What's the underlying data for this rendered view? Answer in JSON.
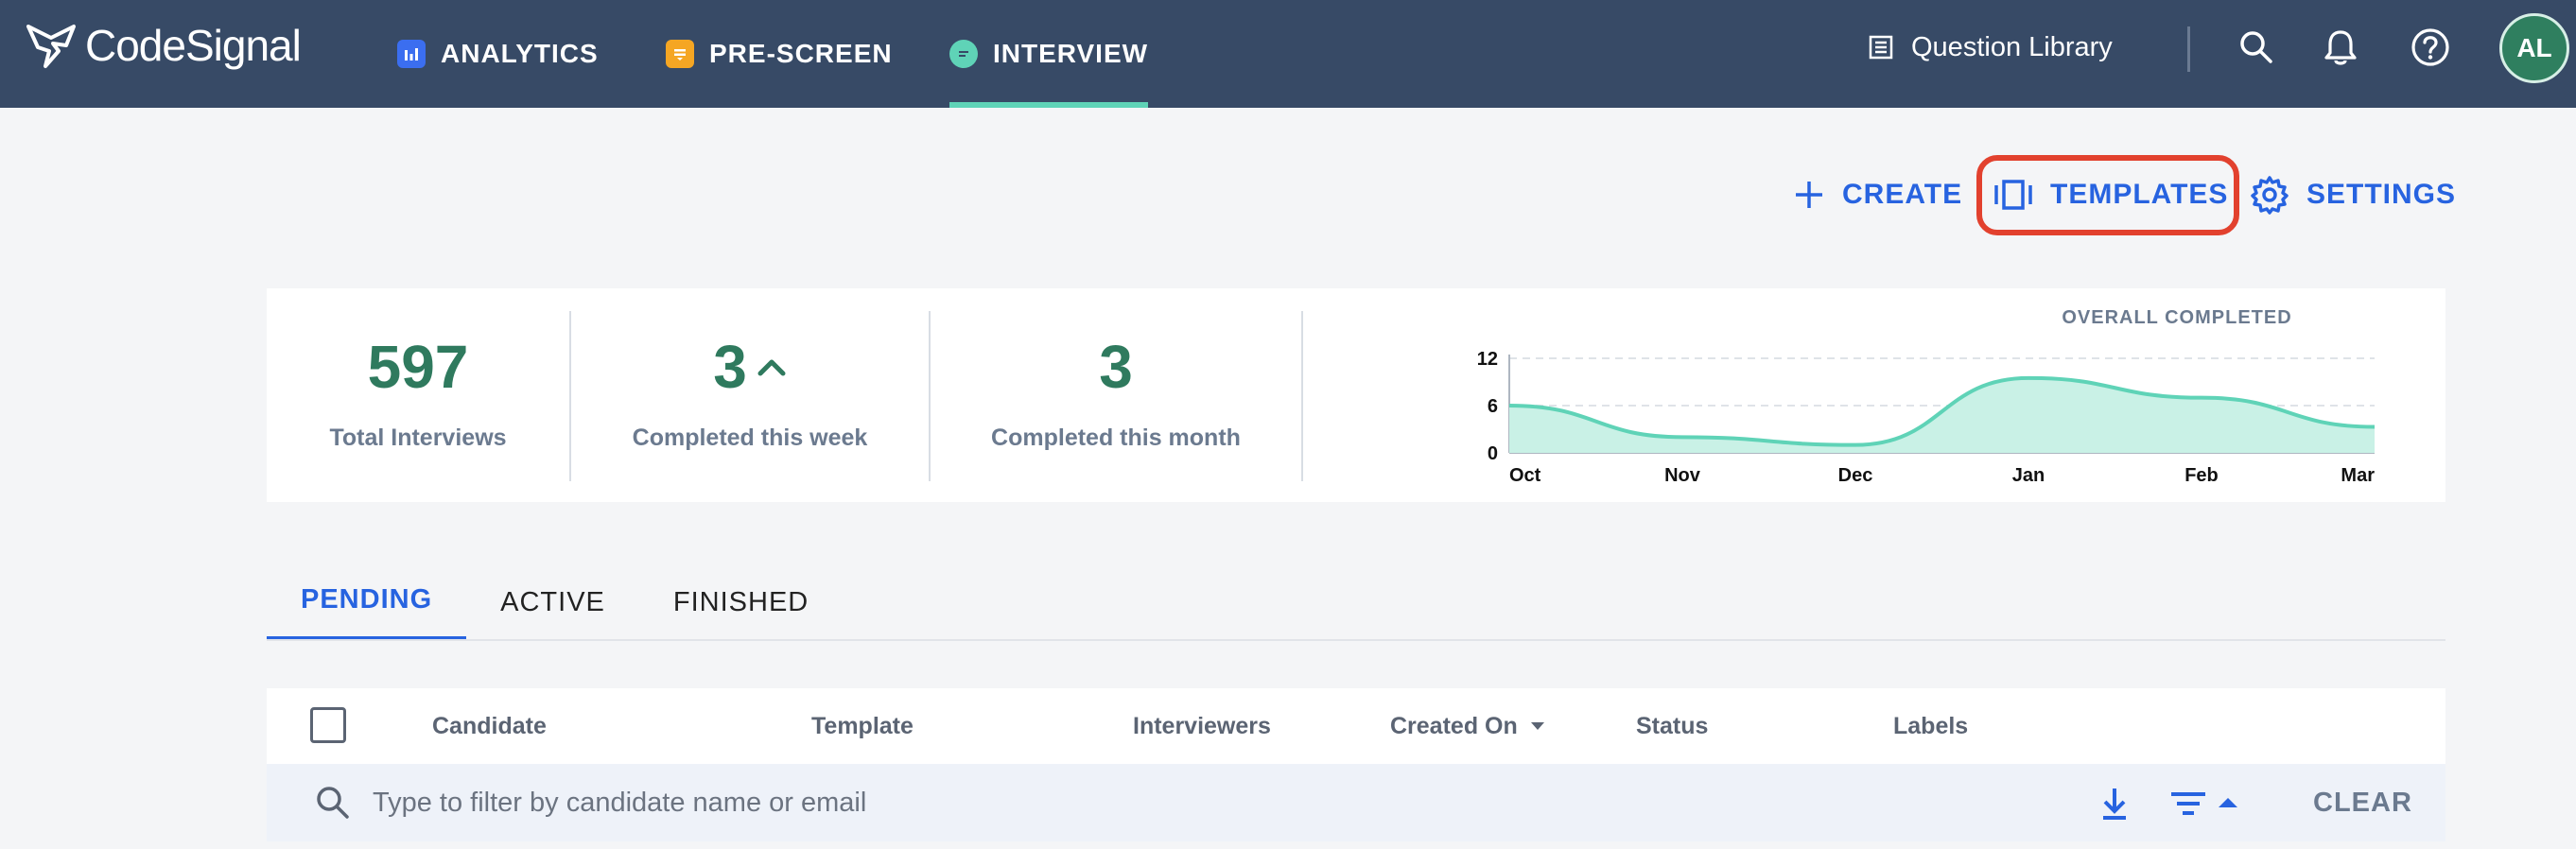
{
  "brand": {
    "name": "CodeSignal"
  },
  "nav": {
    "items": [
      {
        "label": "ANALYTICS",
        "icon": "analytics-icon",
        "color": "#3b6ef0"
      },
      {
        "label": "PRE-SCREEN",
        "icon": "pre-screen-icon",
        "color": "#f5a623"
      },
      {
        "label": "INTERVIEW",
        "icon": "interview-icon",
        "color": "#5fd3b7",
        "active": true
      }
    ],
    "question_library": "Question Library",
    "icons": [
      "search-icon",
      "bell-icon",
      "help-icon"
    ],
    "avatar_initials": "AL"
  },
  "actions": {
    "create": "CREATE",
    "templates": "TEMPLATES",
    "settings": "SETTINGS"
  },
  "stats": [
    {
      "value": "597",
      "label": "Total Interviews"
    },
    {
      "value": "3",
      "label": "Completed this week",
      "trend": "up"
    },
    {
      "value": "3",
      "label": "Completed this month"
    }
  ],
  "chart_data": {
    "type": "area",
    "title": "OVERALL COMPLETED",
    "categories": [
      "Oct",
      "Nov",
      "Dec",
      "Jan",
      "Feb",
      "Mar"
    ],
    "values": [
      6,
      2,
      1,
      9.5,
      7,
      3.3
    ],
    "yticks": [
      0,
      6,
      12
    ],
    "ylim": [
      0,
      12
    ],
    "color": "#5fd3b7",
    "grid": true
  },
  "tabs": [
    {
      "label": "PENDING",
      "active": true
    },
    {
      "label": "ACTIVE"
    },
    {
      "label": "FINISHED"
    }
  ],
  "table": {
    "columns": [
      "Candidate",
      "Template",
      "Interviewers",
      "Created On",
      "Status",
      "Labels"
    ]
  },
  "filter": {
    "placeholder": "Type to filter by candidate name or email",
    "clear_label": "CLEAR"
  },
  "colors": {
    "accent": "#2763e0",
    "topbar": "#374a66",
    "highlight": "#e2412e"
  }
}
